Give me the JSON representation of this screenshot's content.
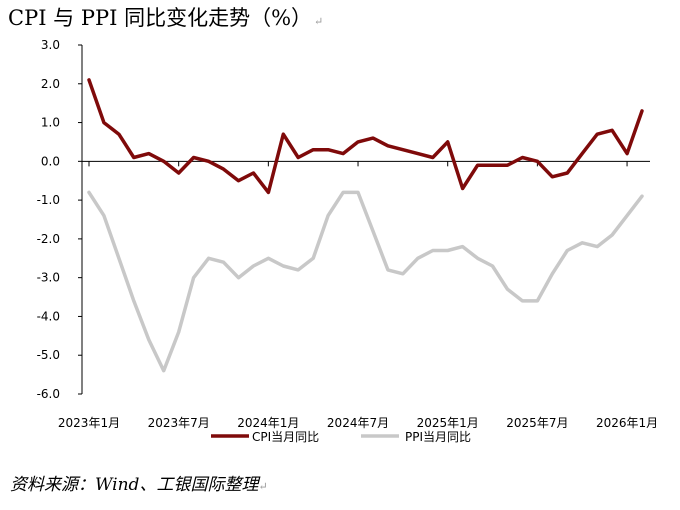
{
  "title": "CPI 与 PPI 同比变化走势（%）",
  "paragraph_mark": "↵",
  "source": "资料来源：Wind、工银国际整理",
  "chart_data": {
    "type": "line",
    "title": "CPI 与 PPI 同比变化走势（%）",
    "xlabel": "",
    "ylabel": "",
    "ylim": [
      -6,
      3
    ],
    "yticks": [
      3,
      2,
      1,
      0,
      -1,
      -2,
      -3,
      -4,
      -5,
      -6
    ],
    "ytick_labels": [
      "3.0",
      "2.0",
      "1.0",
      "0.0",
      "-1.0",
      "-2.0",
      "-3.0",
      "-4.0",
      "-5.0",
      "-6.0"
    ],
    "x": [
      "2023-01",
      "2023-02",
      "2023-03",
      "2023-04",
      "2023-05",
      "2023-06",
      "2023-07",
      "2023-08",
      "2023-09",
      "2023-10",
      "2023-11",
      "2023-12",
      "2024-01",
      "2024-02",
      "2024-03",
      "2024-04",
      "2024-05",
      "2024-06",
      "2024-07",
      "2024-08",
      "2024-09",
      "2024-10",
      "2024-11",
      "2024-12",
      "2025-01",
      "2025-02",
      "2025-03",
      "2025-04",
      "2025-05",
      "2025-06",
      "2025-07",
      "2025-08",
      "2025-09",
      "2025-10",
      "2025-11",
      "2025-12",
      "2026-01",
      "2026-02"
    ],
    "xtick_labels": [
      {
        "index": 0,
        "label": "2023年1月"
      },
      {
        "index": 6,
        "label": "2023年7月"
      },
      {
        "index": 12,
        "label": "2024年1月"
      },
      {
        "index": 18,
        "label": "2024年7月"
      },
      {
        "index": 24,
        "label": "2025年1月"
      },
      {
        "index": 30,
        "label": "2025年7月"
      },
      {
        "index": 36,
        "label": "2026年1月"
      }
    ],
    "series": [
      {
        "name": "CPI当月同比",
        "color": "#7f0a0a",
        "values": [
          2.1,
          1.0,
          0.7,
          0.1,
          0.2,
          0.0,
          -0.3,
          0.1,
          0.0,
          -0.2,
          -0.5,
          -0.3,
          -0.8,
          0.7,
          0.1,
          0.3,
          0.3,
          0.2,
          0.5,
          0.6,
          0.4,
          0.3,
          0.2,
          0.1,
          0.5,
          -0.7,
          -0.1,
          -0.1,
          -0.1,
          0.1,
          0.0,
          -0.4,
          -0.3,
          0.2,
          0.7,
          0.8,
          0.2,
          1.3
        ]
      },
      {
        "name": "PPI当月同比",
        "color": "#c8c8c8",
        "values": [
          -0.8,
          -1.4,
          -2.5,
          -3.6,
          -4.6,
          -5.4,
          -4.4,
          -3.0,
          -2.5,
          -2.6,
          -3.0,
          -2.7,
          -2.5,
          -2.7,
          -2.8,
          -2.5,
          -1.4,
          -0.8,
          -0.8,
          -1.8,
          -2.8,
          -2.9,
          -2.5,
          -2.3,
          -2.3,
          -2.2,
          -2.5,
          -2.7,
          -3.3,
          -3.6,
          -3.6,
          -2.9,
          -2.3,
          -2.1,
          -2.2,
          -1.9,
          -1.4,
          -0.9
        ]
      }
    ],
    "legend": "bottom"
  }
}
